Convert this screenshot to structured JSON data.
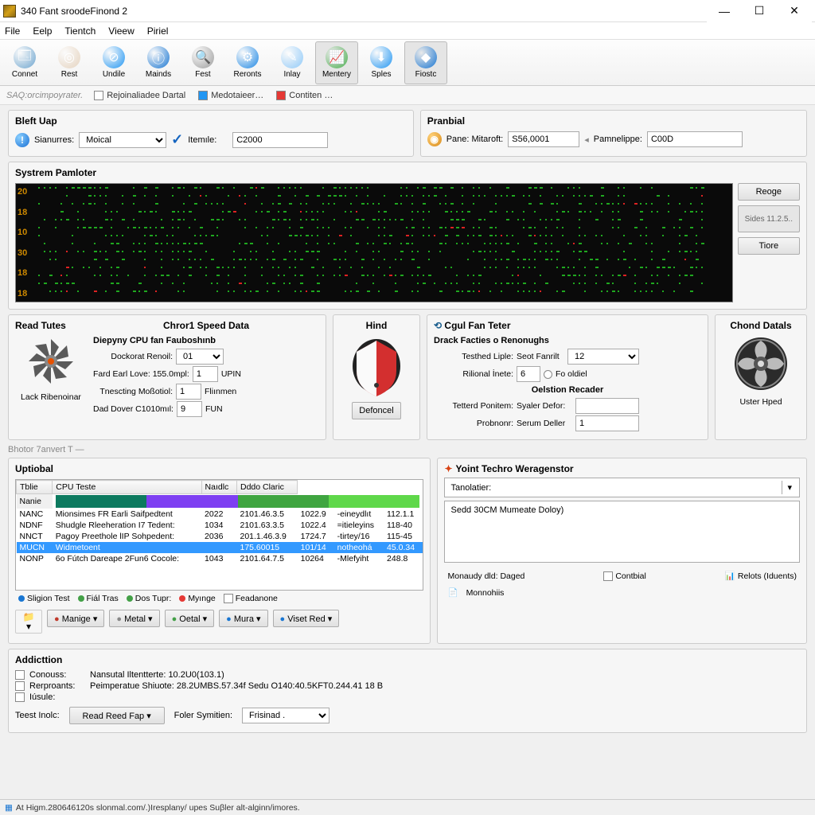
{
  "window": {
    "title": "340 Fant sroodeFinond 2"
  },
  "menu": [
    "File",
    "Eelp",
    "Tientch",
    "Vieew",
    "Piriel"
  ],
  "toolbar": [
    {
      "label": "Connet",
      "bg": "#6fa6cf",
      "glyph": "🗔"
    },
    {
      "label": "Rest",
      "bg": "#e6d4c0",
      "glyph": "◎"
    },
    {
      "label": "Undile",
      "bg": "#2196f3",
      "glyph": "⊘"
    },
    {
      "label": "Mainds",
      "bg": "#1976d2",
      "glyph": "ⓘ"
    },
    {
      "label": "Fest",
      "bg": "#9e9e9e",
      "glyph": "🔍"
    },
    {
      "label": "Reronts",
      "bg": "#1e88e5",
      "glyph": "⚙"
    },
    {
      "label": "Inlay",
      "bg": "#90caf9",
      "glyph": "✎"
    },
    {
      "label": "Mentery",
      "bg": "#4caf50",
      "glyph": "📈",
      "on": true
    },
    {
      "label": "Sples",
      "bg": "#2196f3",
      "glyph": "⬇"
    },
    {
      "label": "Fiostc",
      "bg": "#1976d2",
      "glyph": "◆",
      "on": true
    }
  ],
  "subbar": {
    "hint": "SAQ:orcimpoyrater.",
    "items": [
      {
        "kind": "check",
        "label": "Rejoinaliadee Dartal"
      },
      {
        "kind": "legend",
        "color": "#2196f3",
        "label": "Medotaieer…"
      },
      {
        "kind": "legend",
        "color": "#e53935",
        "label": "Contiten …"
      }
    ]
  },
  "bleft": {
    "title": "Bleft Uap",
    "sianures_label": "Sianurres:",
    "sianures_value": "Moical",
    "itemine_label": "Itemıle:",
    "itemine_value": "C2000"
  },
  "pranbial": {
    "title": "Pranbial",
    "pane_label": "Pane: Mitaroft:",
    "pane_value": "S56,0001",
    "pamn_label": "Pamnelippe:",
    "pamn_value": "C00D"
  },
  "monitor": {
    "title": "Systrem Pamloter",
    "y_ticks": [
      "20",
      "18",
      "10",
      "30",
      "18",
      "18"
    ],
    "y_color": "#cc8800",
    "green": "#1fa81f",
    "red": "#dd2222",
    "bg": "#0a0a0a",
    "side_buttons": [
      "Reoge",
      "Sides 11.2.5..",
      "Tiore"
    ]
  },
  "tutes": {
    "title": "Read Tutes",
    "label": "Lack Ribenoinar",
    "speed_title": "Chror1 Speed Data",
    "subhead": "Diepyny CPU fan Fauboshınb",
    "rows": [
      {
        "l": "Dockorat Renoil:",
        "v": "01",
        "u": "",
        "select": true
      },
      {
        "l": "Fard Earl Love: 155.0mpl:",
        "v": "1",
        "u": "UPIN"
      },
      {
        "l": "Tnescting  Moßotiol:",
        "v": "1",
        "u": "Fliınmen"
      },
      {
        "l": "Dad Dover C1010mıl:",
        "v": "9",
        "u": "FUN"
      }
    ]
  },
  "hind": {
    "title": "Hind",
    "btn": "Defoncel"
  },
  "cgul": {
    "title": "Cgul Fan Teter",
    "sub1": "Drack Facties o Renonughs",
    "r1": [
      {
        "l": "Testhed Liple:",
        "hint": "Seot Fanrilt",
        "v": "12",
        "select": true
      },
      {
        "l": "Rilional İnete:",
        "v": "6",
        "extra": "Fo oldiel",
        "radio": true
      }
    ],
    "sub2": "Oelstion Recader",
    "r2": [
      {
        "l": "Tetterd Ponitem:",
        "l2": "Syaler Defor:",
        "v": ""
      },
      {
        "l": "Probnonr:",
        "l2": "Serum Deller",
        "v": "1"
      }
    ]
  },
  "chond": {
    "title": "Chond Datals",
    "label": "Uster Hped"
  },
  "divider": "Bhotor 7anvert T —",
  "uptiobal": {
    "title": "Uptiobal",
    "columns": [
      "Tblie",
      "CPU Teste",
      "Naıdlc",
      "Dddo Claric"
    ],
    "name_label": "Nanie",
    "bar_colors": [
      "#0d7a5f",
      "#7e3ff2",
      "#3fa540",
      "#5fd84a"
    ],
    "rows": [
      [
        "NANC",
        "Mionsimes FR Earli Saifpedtent",
        "2022",
        "2101.46.3.5",
        "1022.9",
        "-eineydlıt",
        "112.1.1"
      ],
      [
        "NDNF",
        "Shudgle Rleeheration I7 Tedent:",
        "1034",
        "2101.63.3.5",
        "1022.4",
        "=itieleyins",
        "118-40"
      ],
      [
        "NNCT",
        "Pagoy Preethole lIP Sohpedent:",
        "2036",
        "201.1.46.3.9",
        "1724.7",
        "-tirtey/16",
        "115-45"
      ],
      [
        "MUCN",
        "Widmetoent",
        "",
        "175.60015",
        "101/14",
        "notheohá",
        "45.0.34"
      ],
      [
        "NONP",
        "6o Fútch Dareape 2Fun6 Cocole:",
        "1043",
        "2101.64.7.5",
        "10264",
        "-Mlefyiht",
        "248.8"
      ]
    ],
    "selected_row": 3,
    "legend": [
      {
        "c": "#1976d2",
        "l": "Sligion Test"
      },
      {
        "c": "#43a047",
        "l": "Fiál Tras"
      },
      {
        "c": "#43a047",
        "l": "Dos Tupr:"
      },
      {
        "c": "#e53935",
        "l": "Myınge"
      },
      {
        "c": "",
        "l": "Feadanone",
        "check": true
      }
    ],
    "buttons": [
      "Manige ▾",
      "Metal ▾",
      "Oetal ▾",
      "Mura ▾",
      "Viset Red ▾"
    ]
  },
  "yoint": {
    "title": "Yoint Techro Weragenstor",
    "combo_label": "Tanolatier:",
    "text": "Sedd 30CM Mumeate Doloy)",
    "monaury": "Monaudy dld: Daged",
    "contbial": "Contbial",
    "relots": "Relots (Iduents)",
    "monnohis": "Monnohiis"
  },
  "addiction": {
    "title": "Addicttion",
    "rows": [
      {
        "l": "Conouss:",
        "v": "Nansutal Iltentterte: 10.2U0(103.1)"
      },
      {
        "l": "Rerproants:",
        "v": "Peimperatue Shiuote: 28.2UMBS.57.34f Sedu O140:40.5KFT0.244.41 18 B"
      },
      {
        "l": "Iúsule:",
        "v": ""
      }
    ],
    "test_label": "Teest Inolc:",
    "test_btn": "Read Reed Fap ▾",
    "foler_label": "Foler Symitien:",
    "foler_value": "Frisinad ."
  },
  "status": "At Higm.280646120s slonmal.com/.)Iresplany/ upes Suβler alt-alginn/imores."
}
